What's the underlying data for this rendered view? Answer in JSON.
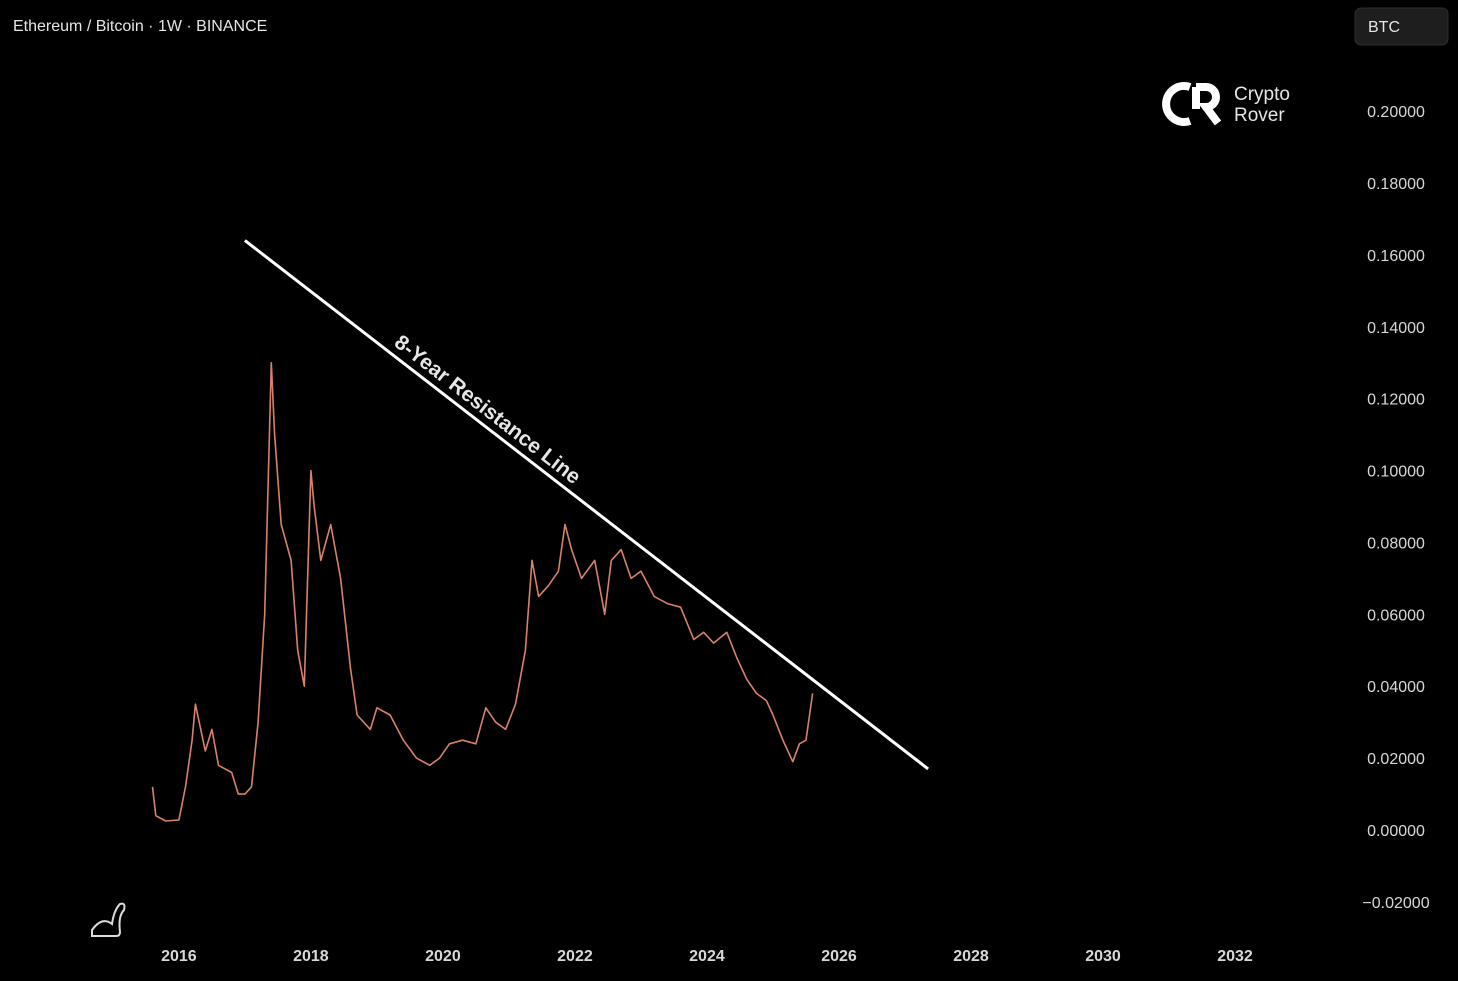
{
  "chart_data": {
    "type": "line",
    "title": "Ethereum / Bitcoin · 1W · BINANCE",
    "currency_button": "BTC",
    "watermark": [
      "Crypto",
      "Rover"
    ],
    "x": [
      2015.6,
      2015.65,
      2015.8,
      2016.0,
      2016.1,
      2016.2,
      2016.25,
      2016.4,
      2016.5,
      2016.6,
      2016.8,
      2016.9,
      2017.0,
      2017.1,
      2017.2,
      2017.3,
      2017.4,
      2017.45,
      2017.55,
      2017.7,
      2017.8,
      2017.9,
      2018.0,
      2018.05,
      2018.15,
      2018.3,
      2018.45,
      2018.6,
      2018.7,
      2018.9,
      2019.0,
      2019.2,
      2019.4,
      2019.6,
      2019.8,
      2019.95,
      2020.1,
      2020.3,
      2020.5,
      2020.65,
      2020.8,
      2020.95,
      2021.1,
      2021.25,
      2021.35,
      2021.45,
      2021.6,
      2021.75,
      2021.85,
      2021.95,
      2022.1,
      2022.3,
      2022.45,
      2022.55,
      2022.7,
      2022.85,
      2023.0,
      2023.2,
      2023.4,
      2023.6,
      2023.8,
      2023.95,
      2024.1,
      2024.3,
      2024.45,
      2024.6,
      2024.75,
      2024.9,
      2025.0,
      2025.15,
      2025.3,
      2025.4,
      2025.5,
      2025.6
    ],
    "series": [
      {
        "name": "ETH/BTC",
        "color": "#d9826a",
        "values": [
          0.012,
          0.004,
          0.0025,
          0.0028,
          0.012,
          0.025,
          0.035,
          0.022,
          0.028,
          0.018,
          0.016,
          0.01,
          0.01,
          0.012,
          0.03,
          0.06,
          0.13,
          0.11,
          0.085,
          0.075,
          0.05,
          0.04,
          0.1,
          0.09,
          0.075,
          0.085,
          0.07,
          0.045,
          0.032,
          0.028,
          0.034,
          0.032,
          0.025,
          0.02,
          0.018,
          0.02,
          0.024,
          0.025,
          0.024,
          0.034,
          0.03,
          0.028,
          0.035,
          0.05,
          0.075,
          0.065,
          0.068,
          0.072,
          0.085,
          0.078,
          0.07,
          0.075,
          0.06,
          0.075,
          0.078,
          0.07,
          0.072,
          0.065,
          0.063,
          0.062,
          0.053,
          0.055,
          0.052,
          0.055,
          0.048,
          0.042,
          0.038,
          0.036,
          0.032,
          0.025,
          0.019,
          0.024,
          0.025,
          0.038
        ]
      }
    ],
    "lines": [
      {
        "label": "8-Year Resistance Line",
        "color": "#ffffff",
        "x": [
          2017.0,
          2027.35
        ],
        "y": [
          0.164,
          0.017
        ]
      }
    ],
    "xlim": [
      2013.29,
      2033.59
    ],
    "ylim": [
      -0.0292,
      0.2309
    ],
    "xticks": [
      2016,
      2018,
      2020,
      2022,
      2024,
      2026,
      2028,
      2030,
      2032
    ],
    "yticks": [
      {
        "value": -0.02,
        "label": "−0.02000"
      },
      {
        "value": 0,
        "label": "0.00000"
      },
      {
        "value": 0.02,
        "label": "0.02000"
      },
      {
        "value": 0.04,
        "label": "0.04000"
      },
      {
        "value": 0.06,
        "label": "0.06000"
      },
      {
        "value": 0.08,
        "label": "0.08000"
      },
      {
        "value": 0.1,
        "label": "0.10000"
      },
      {
        "value": 0.12,
        "label": "0.12000"
      },
      {
        "value": 0.14,
        "label": "0.14000"
      },
      {
        "value": 0.16,
        "label": "0.16000"
      },
      {
        "value": 0.18,
        "label": "0.18000"
      },
      {
        "value": 0.2,
        "label": "0.20000"
      }
    ]
  }
}
